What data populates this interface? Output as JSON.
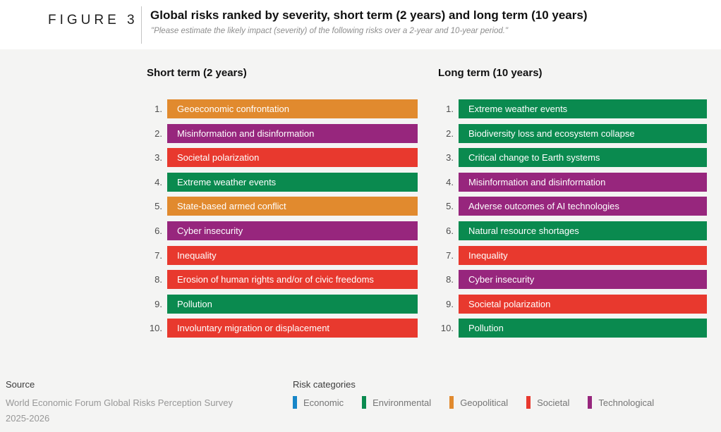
{
  "header": {
    "figure_label": "FIGURE 3",
    "title": "Global risks ranked by severity, short term (2 years) and long term (10 years)",
    "subtitle": "\"Please estimate the likely impact (severity) of the following risks over a 2-year and 10-year period.\""
  },
  "colors": {
    "economic": "#1786c8",
    "environmental": "#0a8a4f",
    "geopolitical": "#e18a2e",
    "societal": "#e8392e",
    "technological": "#97267d"
  },
  "chart_data": {
    "type": "table",
    "title": "Global risks ranked by severity, short term (2 years) and long term (10 years)",
    "columns": [
      {
        "title": "Short term (2 years)",
        "items": [
          {
            "rank": "1.",
            "label": "Geoeconomic confrontation",
            "category": "geopolitical"
          },
          {
            "rank": "2.",
            "label": "Misinformation and disinformation",
            "category": "technological"
          },
          {
            "rank": "3.",
            "label": "Societal polarization",
            "category": "societal"
          },
          {
            "rank": "4.",
            "label": "Extreme weather events",
            "category": "environmental"
          },
          {
            "rank": "5.",
            "label": "State-based armed conflict",
            "category": "geopolitical"
          },
          {
            "rank": "6.",
            "label": "Cyber insecurity",
            "category": "technological"
          },
          {
            "rank": "7.",
            "label": "Inequality",
            "category": "societal"
          },
          {
            "rank": "8.",
            "label": "Erosion of human rights and/or of civic freedoms",
            "category": "societal"
          },
          {
            "rank": "9.",
            "label": "Pollution",
            "category": "environmental"
          },
          {
            "rank": "10.",
            "label": "Involuntary migration or displacement",
            "category": "societal"
          }
        ]
      },
      {
        "title": "Long term (10 years)",
        "items": [
          {
            "rank": "1.",
            "label": "Extreme weather events",
            "category": "environmental"
          },
          {
            "rank": "2.",
            "label": "Biodiversity loss and ecosystem collapse",
            "category": "environmental"
          },
          {
            "rank": "3.",
            "label": "Critical change to Earth systems",
            "category": "environmental"
          },
          {
            "rank": "4.",
            "label": "Misinformation and disinformation",
            "category": "technological"
          },
          {
            "rank": "5.",
            "label": "Adverse outcomes of AI technologies",
            "category": "technological"
          },
          {
            "rank": "6.",
            "label": "Natural resource shortages",
            "category": "environmental"
          },
          {
            "rank": "7.",
            "label": "Inequality",
            "category": "societal"
          },
          {
            "rank": "8.",
            "label": "Cyber insecurity",
            "category": "technological"
          },
          {
            "rank": "9.",
            "label": "Societal polarization",
            "category": "societal"
          },
          {
            "rank": "10.",
            "label": "Pollution",
            "category": "environmental"
          }
        ]
      }
    ],
    "legend_position": "bottom"
  },
  "footer": {
    "source_label": "Source",
    "source_line1": "World Economic Forum Global Risks Perception Survey",
    "source_line2": "2025-2026",
    "legend_title": "Risk categories",
    "legend": [
      {
        "label": "Economic",
        "color": "#1786c8"
      },
      {
        "label": "Environmental",
        "color": "#0a8a4f"
      },
      {
        "label": "Geopolitical",
        "color": "#e18a2e"
      },
      {
        "label": "Societal",
        "color": "#e8392e"
      },
      {
        "label": "Technological",
        "color": "#97267d"
      }
    ]
  }
}
